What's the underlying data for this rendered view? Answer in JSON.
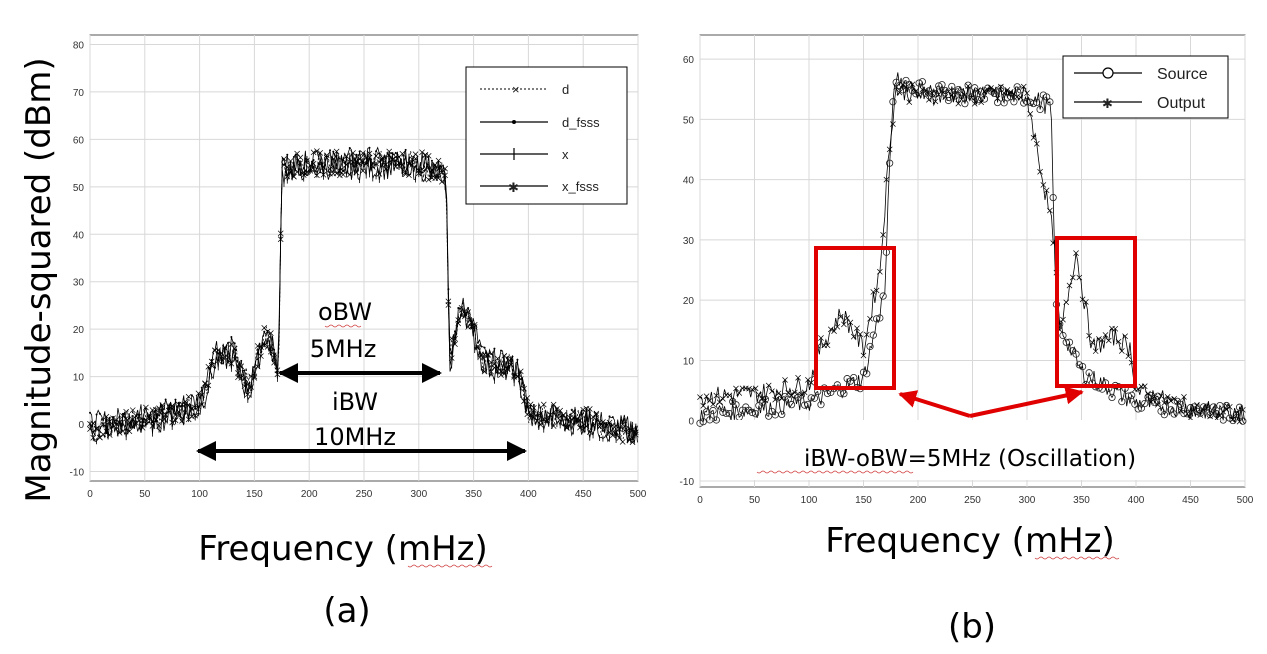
{
  "figure": {
    "panel_a_caption": "(a)",
    "panel_b_caption": "(b)"
  },
  "chart_data": [
    {
      "panel": "a",
      "type": "line",
      "xlabel": "Frequency (mHz)",
      "ylabel": "Magnitude-squared (dBm)",
      "xlim": [
        0,
        500
      ],
      "ylim": [
        -12,
        82
      ],
      "xticks": [
        "0",
        "50",
        "100",
        "150",
        "200",
        "250",
        "300",
        "350",
        "400",
        "450",
        "500"
      ],
      "yticks": [
        "-10",
        "0",
        "10",
        "20",
        "30",
        "40",
        "50",
        "60",
        "70",
        "80"
      ],
      "grid": true,
      "legend_position": "top-right",
      "legend": [
        "d",
        "d_fsss",
        "x",
        "x_fsss"
      ],
      "series": [
        {
          "name": "d",
          "x": [
            0,
            50,
            100,
            115,
            130,
            145,
            160,
            172,
            175,
            200,
            250,
            300,
            325,
            328,
            340,
            360,
            390,
            400,
            450,
            500
          ],
          "y": [
            -1,
            1,
            4,
            14,
            16,
            8,
            20,
            12,
            54,
            55,
            55,
            55,
            52,
            14,
            26,
            13,
            12,
            2,
            1,
            -2
          ]
        },
        {
          "name": "d_fsss",
          "x": [
            0,
            50,
            100,
            115,
            130,
            145,
            160,
            172,
            175,
            200,
            250,
            300,
            325,
            328,
            340,
            360,
            390,
            400,
            450,
            500
          ],
          "y": [
            0,
            2,
            5,
            15,
            16,
            7,
            21,
            12,
            55,
            55,
            56,
            55,
            54,
            13,
            27,
            14,
            12,
            3,
            1,
            -1
          ]
        },
        {
          "name": "x",
          "x": [
            0,
            50,
            100,
            115,
            130,
            145,
            160,
            172,
            175,
            200,
            250,
            300,
            325,
            328,
            340,
            360,
            390,
            400,
            450,
            500
          ],
          "y": [
            -2,
            0,
            3,
            13,
            14,
            6,
            19,
            11,
            53,
            54,
            54,
            54,
            52,
            12,
            25,
            12,
            11,
            1,
            0,
            -3
          ]
        },
        {
          "name": "x_fsss",
          "x": [
            0,
            50,
            100,
            115,
            130,
            145,
            160,
            172,
            175,
            200,
            250,
            300,
            325,
            328,
            340,
            360,
            390,
            400,
            450,
            500
          ],
          "y": [
            -1,
            1,
            4,
            15,
            15,
            7,
            20,
            12,
            54,
            55,
            55,
            55,
            53,
            13,
            26,
            13,
            12,
            2,
            1,
            -2
          ]
        }
      ],
      "annotations": {
        "obw_label": "oBW",
        "obw_value": "5MHz",
        "obw_range": [
          170,
          330
        ],
        "ibw_label": "iBW",
        "ibw_value": "10MHz",
        "ibw_range": [
          95,
          410
        ]
      }
    },
    {
      "panel": "b",
      "type": "line",
      "xlabel": "Frequency (mHz)",
      "ylabel": "",
      "xlim": [
        0,
        500
      ],
      "ylim": [
        -11,
        64
      ],
      "xticks": [
        "0",
        "50",
        "100",
        "150",
        "200",
        "250",
        "300",
        "350",
        "400",
        "450",
        "500"
      ],
      "yticks": [
        "-10",
        "0",
        "10",
        "20",
        "30",
        "40",
        "50",
        "60"
      ],
      "grid": true,
      "legend_position": "top-right",
      "legend": [
        "Source",
        "Output"
      ],
      "series": [
        {
          "name": "Source",
          "x": [
            0,
            50,
            100,
            150,
            170,
            175,
            180,
            200,
            250,
            300,
            322,
            326,
            330,
            350,
            400,
            450,
            500
          ],
          "y": [
            1,
            2,
            3,
            7,
            22,
            48,
            57,
            55,
            54,
            54,
            52,
            22,
            16,
            8,
            3,
            2,
            1
          ]
        },
        {
          "name": "Output",
          "x": [
            0,
            50,
            100,
            110,
            130,
            150,
            165,
            175,
            180,
            200,
            250,
            300,
            325,
            330,
            345,
            360,
            380,
            395,
            400,
            450,
            500
          ],
          "y": [
            4,
            4.5,
            6,
            12,
            18,
            12,
            25,
            48,
            55,
            54,
            54,
            54,
            30,
            14,
            28,
            12,
            14,
            12,
            5,
            2,
            1
          ]
        }
      ],
      "annotations": {
        "oscillation_label": "iBW-oBW=5MHz (Oscillation)",
        "box_left_range": [
          100,
          173
        ],
        "box_right_range": [
          323,
          398
        ]
      }
    }
  ]
}
